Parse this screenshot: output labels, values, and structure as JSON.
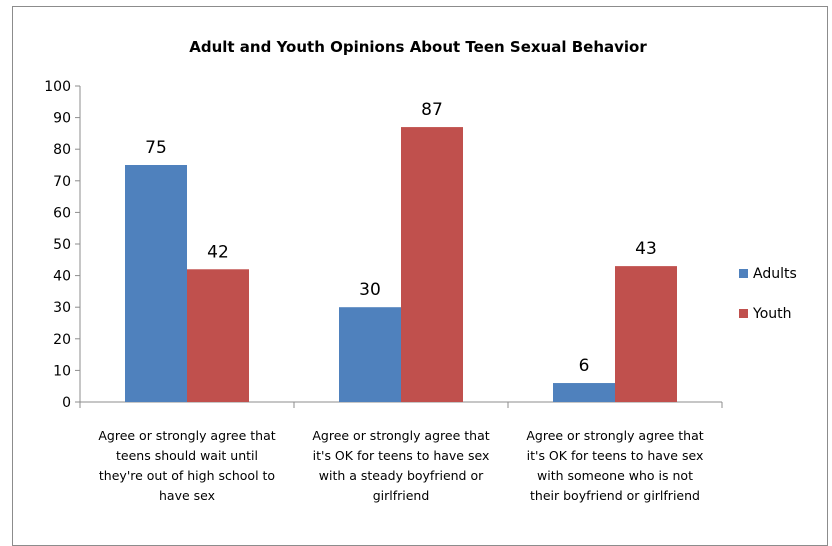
{
  "chart_data": {
    "type": "bar",
    "title": "Adult and Youth Opinions About Teen Sexual Behavior",
    "categories": [
      [
        "Agree or strongly agree that",
        "teens should wait until",
        "they're out of high school to",
        "have sex"
      ],
      [
        "Agree or strongly agree that",
        "it's OK for teens to have sex",
        "with a steady boyfriend or",
        "girlfriend"
      ],
      [
        "Agree or strongly agree that",
        "it's OK for teens to have sex",
        "with someone who is not",
        "their boyfriend or girlfriend"
      ]
    ],
    "series": [
      {
        "name": "Adults",
        "values": [
          75,
          30,
          6
        ],
        "color": "#4f81bd"
      },
      {
        "name": "Youth",
        "values": [
          42,
          87,
          43
        ],
        "color": "#c0504d"
      }
    ],
    "ylim": [
      0,
      100
    ],
    "yticks": [
      0,
      10,
      20,
      30,
      40,
      50,
      60,
      70,
      80,
      90,
      100
    ],
    "legend_position": "right",
    "data_labels": true,
    "grid": false
  }
}
